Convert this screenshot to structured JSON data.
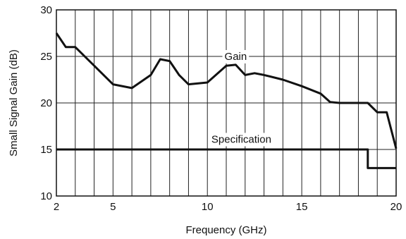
{
  "chart_data": {
    "type": "line",
    "title": "",
    "xlabel": "Frequency (GHz)",
    "ylabel": "Small Signal Gain (dB)",
    "xlim": [
      2,
      20
    ],
    "ylim": [
      10,
      30
    ],
    "xticks": [
      2,
      5,
      10,
      15,
      20
    ],
    "yticks": [
      10,
      15,
      20,
      25,
      30
    ],
    "grid": true,
    "series": [
      {
        "name": "Gain",
        "x": [
          2,
          2.5,
          3,
          4,
          5,
          6,
          7,
          7.5,
          8,
          8.5,
          9,
          10,
          11,
          11.5,
          12,
          12.5,
          13,
          14,
          15,
          16,
          16.5,
          17,
          18,
          18.5,
          19,
          19.5,
          20
        ],
        "y": [
          27.5,
          26,
          26,
          24,
          22,
          21.6,
          23,
          24.7,
          24.5,
          23,
          22,
          22.2,
          24,
          24.1,
          23,
          23.2,
          23,
          22.5,
          21.8,
          21,
          20.1,
          20,
          20,
          20,
          19,
          19,
          15.1
        ]
      },
      {
        "name": "Specification",
        "x": [
          2,
          18.5,
          18.5,
          20
        ],
        "y": [
          15,
          15,
          13,
          13
        ]
      }
    ],
    "annotations": [
      "Gain",
      "Specification"
    ]
  }
}
